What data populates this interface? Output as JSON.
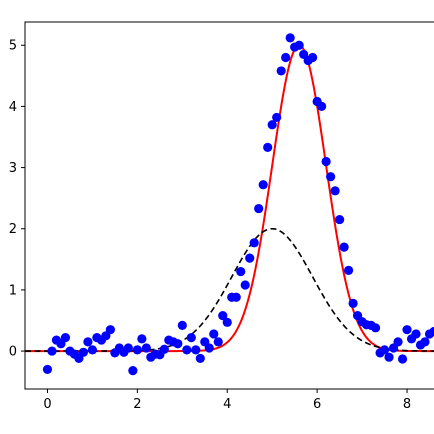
{
  "chart_data": {
    "type": "scatter",
    "title": "",
    "xlabel": "",
    "ylabel": "",
    "xlim": [
      -0.5,
      8.6
    ],
    "ylim": [
      -0.62,
      5.38
    ],
    "grid": false,
    "legend": "none",
    "x_ticks": [
      0,
      2,
      4,
      6,
      8
    ],
    "y_ticks": [
      0,
      1,
      2,
      3,
      4,
      5
    ],
    "x_tick_labels": [
      "0",
      "2",
      "4",
      "6",
      "8"
    ],
    "y_tick_labels": [
      "0",
      "1",
      "2",
      "3",
      "4",
      "5"
    ],
    "colors": {
      "points": "#0000ff",
      "fit": "#ff0000",
      "initial": "#000000"
    },
    "series": [
      {
        "kind": "points",
        "x": [
          0.0,
          0.1,
          0.2,
          0.3,
          0.4,
          0.5,
          0.6,
          0.7,
          0.8,
          0.9,
          1.0,
          1.1,
          1.2,
          1.3,
          1.4,
          1.5,
          1.6,
          1.7,
          1.8,
          1.9,
          2.0,
          2.1,
          2.2,
          2.3,
          2.4,
          2.5,
          2.6,
          2.7,
          2.8,
          2.9,
          3.0,
          3.1,
          3.2,
          3.3,
          3.4,
          3.5,
          3.6,
          3.7,
          3.8,
          3.9,
          4.0,
          4.1,
          4.2,
          4.3,
          4.4,
          4.5,
          4.6,
          4.7,
          4.8,
          4.9,
          5.0,
          5.1,
          5.2,
          5.3,
          5.4,
          5.5,
          5.6,
          5.7,
          5.8,
          5.9,
          6.0,
          6.1,
          6.2,
          6.3,
          6.4,
          6.5,
          6.6,
          6.7,
          6.8,
          6.9,
          7.0,
          7.1,
          7.2,
          7.3,
          7.4,
          7.5,
          7.6,
          7.7,
          7.8,
          7.9,
          8.0,
          8.1,
          8.2,
          8.3,
          8.4,
          8.5,
          8.6
        ],
        "y": [
          -0.3,
          0.0,
          0.18,
          0.12,
          0.22,
          0.0,
          -0.05,
          -0.12,
          -0.02,
          0.15,
          0.02,
          0.22,
          0.18,
          0.25,
          0.35,
          -0.03,
          0.05,
          -0.02,
          0.05,
          -0.32,
          0.02,
          0.2,
          0.05,
          -0.1,
          -0.05,
          -0.06,
          0.03,
          0.18,
          0.15,
          0.12,
          0.42,
          0.02,
          0.22,
          0.02,
          -0.12,
          0.15,
          0.05,
          0.28,
          0.15,
          0.58,
          0.47,
          0.88,
          0.88,
          1.3,
          1.08,
          1.52,
          1.77,
          2.33,
          2.72,
          3.33,
          3.7,
          3.82,
          4.58,
          4.8,
          5.12,
          4.97,
          5.0,
          4.85,
          4.75,
          4.8,
          4.08,
          4.0,
          3.1,
          2.85,
          2.62,
          2.15,
          1.7,
          1.32,
          0.78,
          0.58,
          0.48,
          0.43,
          0.42,
          0.38,
          -0.03,
          0.02,
          -0.1,
          0.05,
          0.15,
          -0.13,
          0.35,
          0.2,
          0.28,
          0.1,
          0.15,
          0.28,
          0.32
        ]
      },
      {
        "kind": "line",
        "style": "solid",
        "function": "gaussian",
        "amplitude": 5.0,
        "center": 5.6,
        "sigma": 0.6
      },
      {
        "kind": "line",
        "style": "dashed",
        "function": "gaussian",
        "amplitude": 2.0,
        "center": 5.0,
        "sigma": 0.9
      }
    ]
  }
}
